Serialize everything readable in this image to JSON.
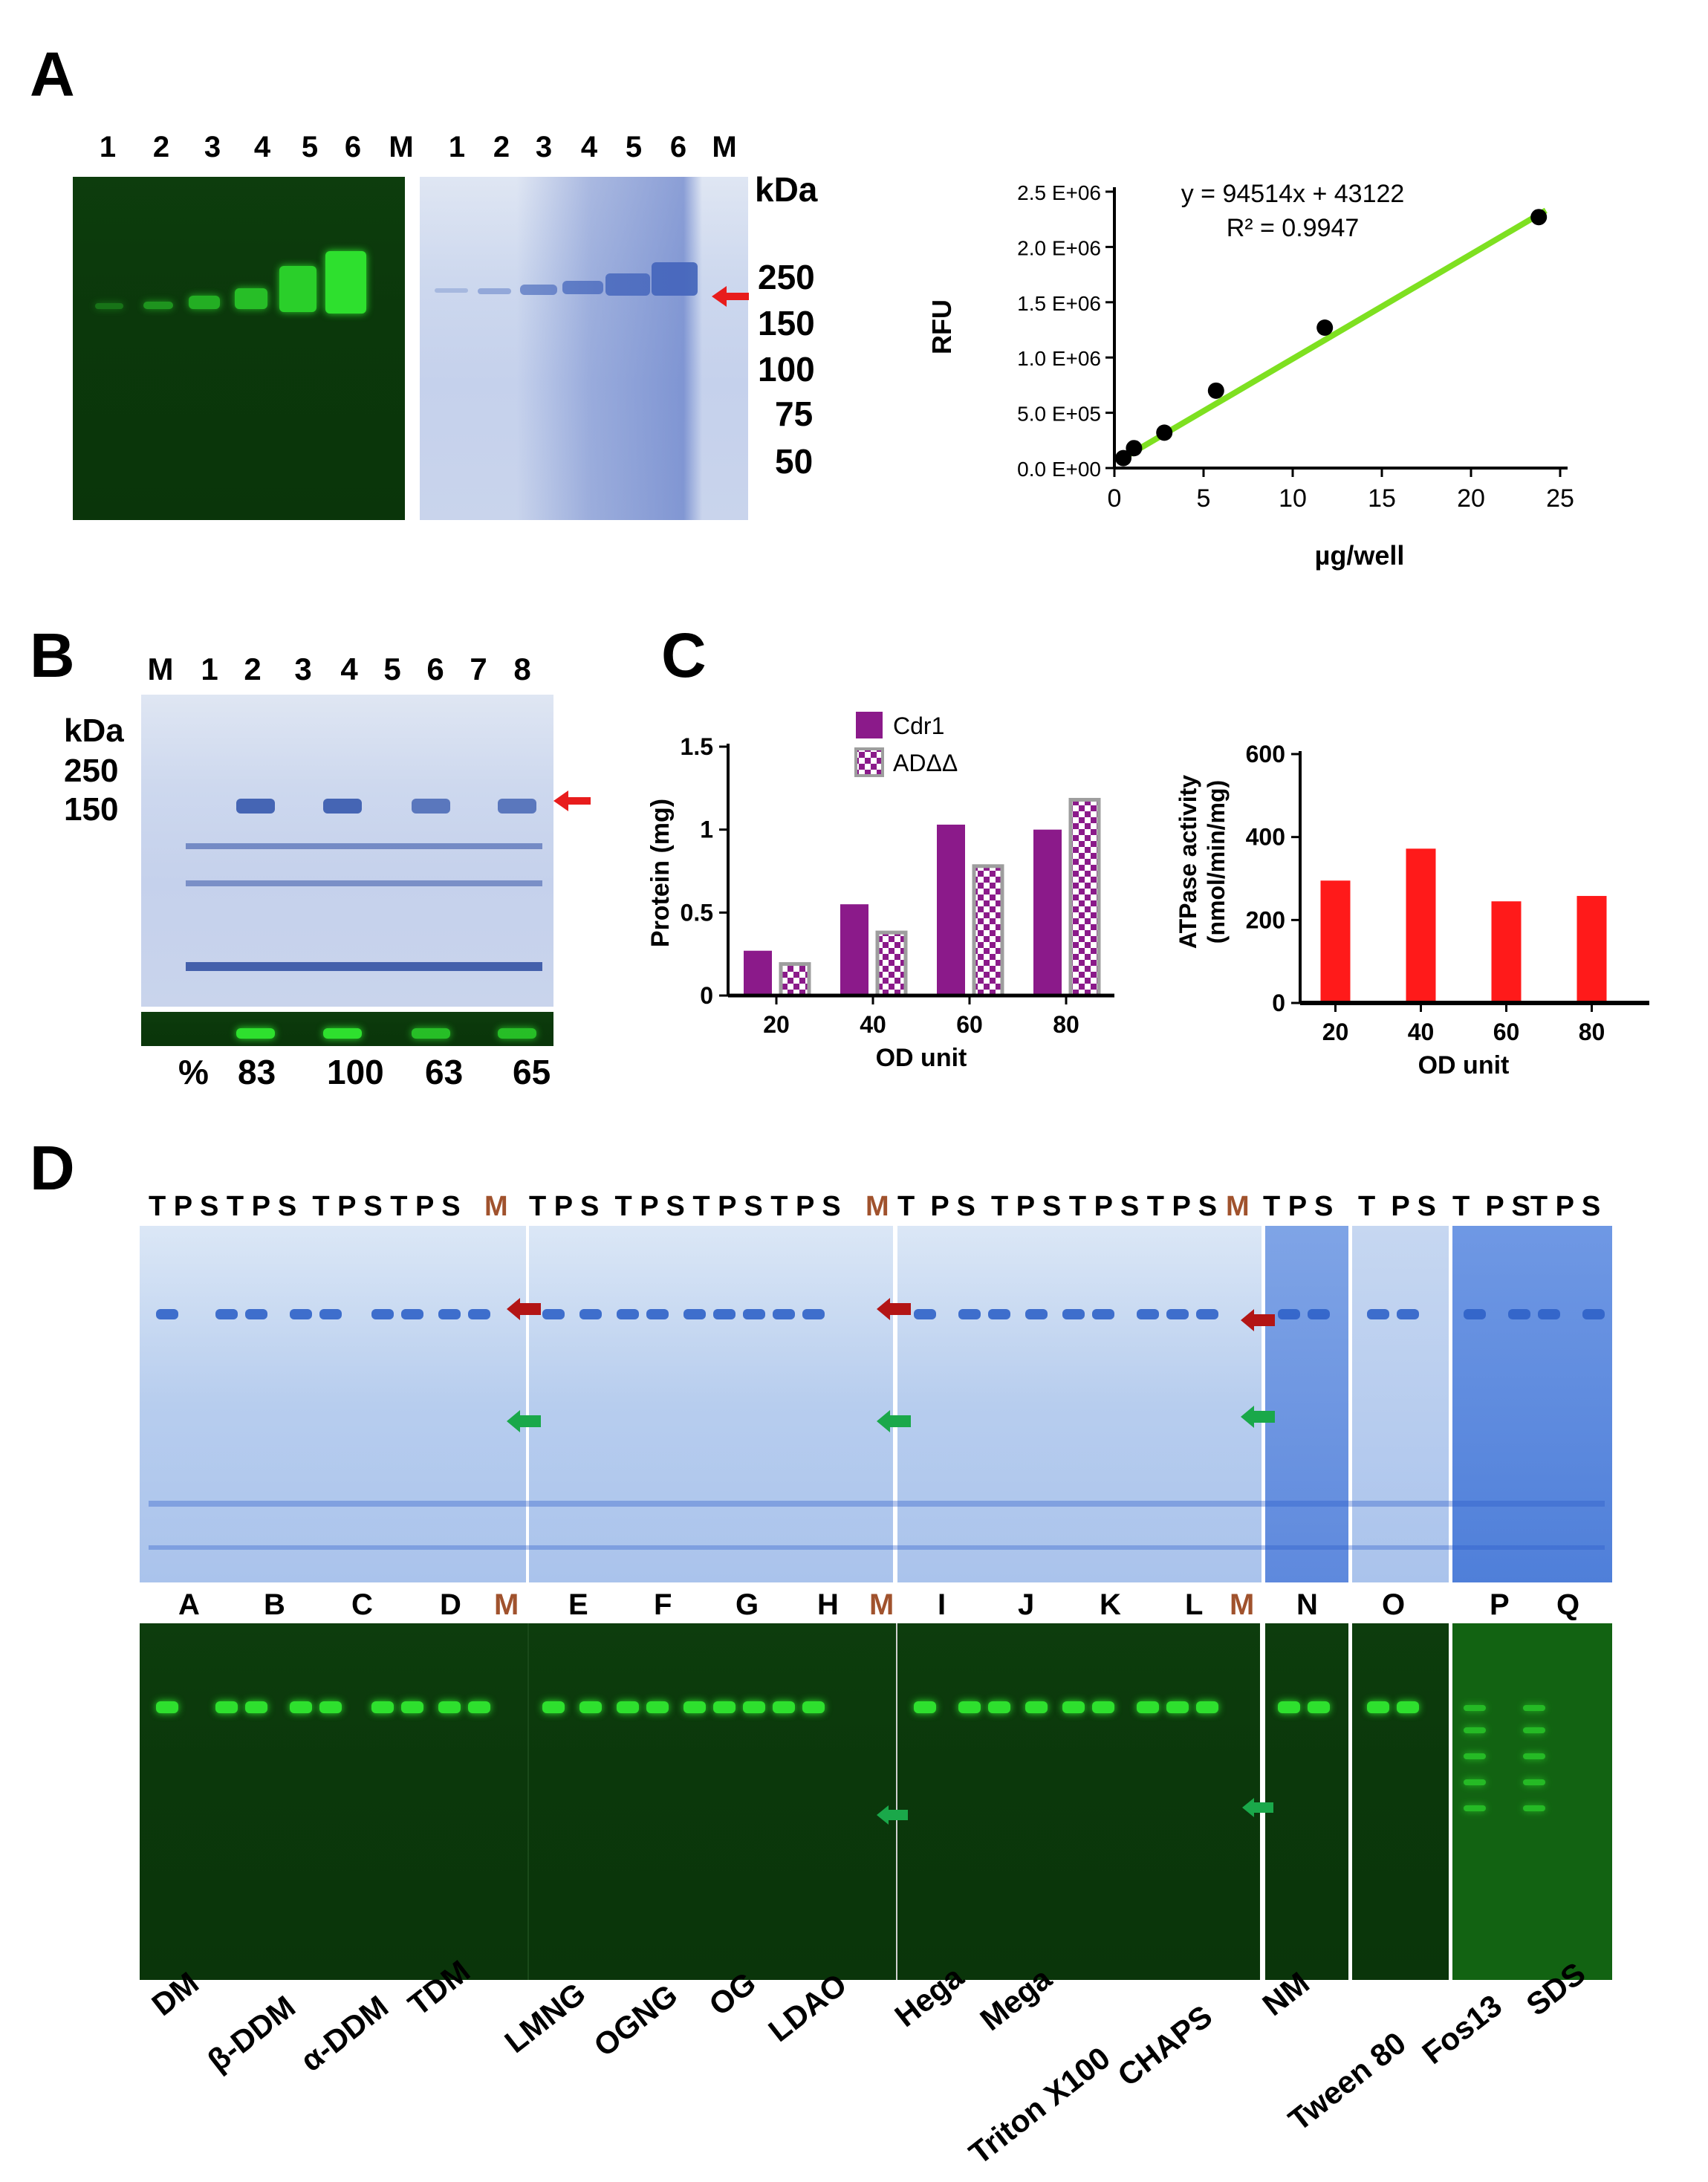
{
  "panel_labels": {
    "a": "A",
    "b": "B",
    "c": "C",
    "d": "D"
  },
  "panel_a": {
    "lanes_left": [
      "1",
      "2",
      "3",
      "4",
      "5",
      "6",
      "M"
    ],
    "lanes_right": [
      "1",
      "2",
      "3",
      "4",
      "5",
      "6",
      "M"
    ],
    "kda_label": "kDa",
    "markers": [
      "250",
      "150",
      "100",
      "75",
      "50"
    ]
  },
  "panel_b": {
    "lanes": [
      "M",
      "1",
      "2",
      "3",
      "4",
      "5",
      "6",
      "7",
      "8"
    ],
    "kda_label": "kDa",
    "markers": [
      "250",
      "150"
    ],
    "percent_label": "%",
    "percents": [
      "83",
      "100",
      "63",
      "65"
    ]
  },
  "panel_d": {
    "tps_groups": [
      "T P S T P S  T P S T P S",
      "M",
      "T P S  T P S T P S T P S",
      "M",
      "T  P S  T P S T P S T P S",
      "M",
      "T P S",
      "T  P S",
      "T  P ST P S"
    ],
    "letters": [
      "A",
      "B",
      "C",
      "D",
      "M",
      "E",
      "F",
      "G",
      "H",
      "M",
      "I",
      "J",
      "K",
      "L",
      "M",
      "N",
      "O",
      "P",
      "Q"
    ],
    "detergents": [
      "DM",
      "β-DDM",
      "α-DDM",
      "TDM",
      "LMNG",
      "OGNG",
      "OG",
      "LDAO",
      "Hega",
      "Mega",
      "Triton X100",
      "CHAPS",
      "NM",
      "Tween 80",
      "Fos13",
      "SDS"
    ]
  },
  "colors": {
    "accent_red": "#e81c1c",
    "cdr1": "#8b1a8a",
    "marker_brown": "#a0522d",
    "green_fit": "#7ee020",
    "arrow_green": "#1aa84a",
    "arrow_darkred": "#b31515"
  },
  "chart_data": [
    {
      "type": "scatter",
      "title": "",
      "equation": "y = 94514x + 43122",
      "r2": "R² = 0.9947",
      "xlabel": "µg/well",
      "ylabel": "RFU",
      "x_ticks": [
        "0",
        "5",
        "10",
        "15",
        "20",
        "25"
      ],
      "y_ticks": [
        "0.0 E+00",
        "5.0 E+05",
        "1.0 E+06",
        "1.5 E+06",
        "2.0 E+06",
        "2.5 E+06"
      ],
      "xlim": [
        0,
        25
      ],
      "ylim": [
        0,
        2500000
      ],
      "x": [
        0.5,
        1.1,
        2.8,
        5.7,
        11.8,
        23.8
      ],
      "y": [
        90000,
        180000,
        320000,
        700000,
        1270000,
        2270000
      ],
      "fit": {
        "slope": 94514,
        "intercept": 43122
      }
    },
    {
      "type": "bar",
      "title": "",
      "xlabel": "OD unit",
      "ylabel": "Protein (mg)",
      "categories": [
        "20",
        "40",
        "60",
        "80"
      ],
      "y_ticks": [
        "0",
        "0.5",
        "1",
        "1.5"
      ],
      "ylim": [
        0,
        1.5
      ],
      "series": [
        {
          "name": "Cdr1",
          "values": [
            0.27,
            0.55,
            1.03,
            1.0
          ]
        },
        {
          "name": "ADΔΔ",
          "values": [
            0.19,
            0.38,
            0.78,
            1.18
          ]
        }
      ]
    },
    {
      "type": "bar",
      "title": "",
      "xlabel": "OD unit",
      "ylabel": "ATPase activity",
      "ylabel2": "(nmol/min/mg)",
      "categories": [
        "20",
        "40",
        "60",
        "80"
      ],
      "y_ticks": [
        "0",
        "200",
        "400",
        "600"
      ],
      "ylim": [
        0,
        600
      ],
      "series": [
        {
          "name": "ATPase",
          "values": [
            295,
            372,
            245,
            258
          ]
        }
      ]
    }
  ]
}
